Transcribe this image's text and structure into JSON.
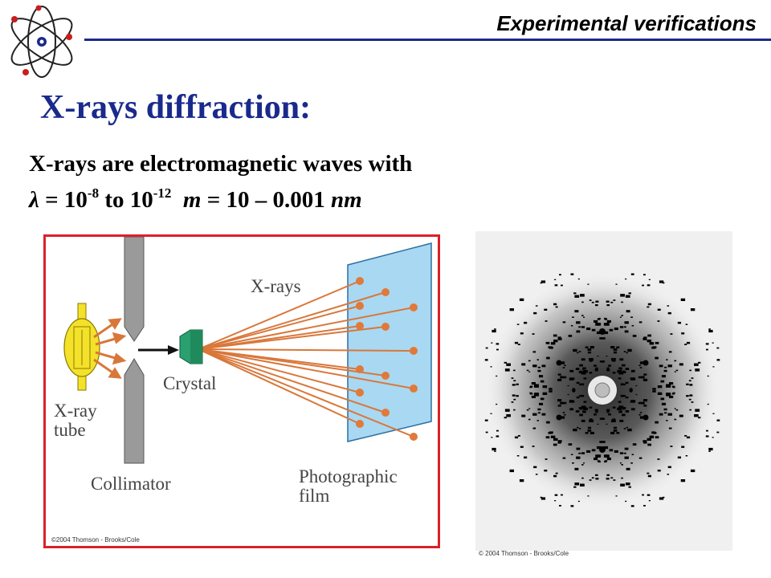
{
  "header": {
    "title": "Experimental verifications"
  },
  "slide": {
    "title": "X-rays diffraction:",
    "line1": "X-rays are electromagnetic  waves with",
    "line2": {
      "lambda": "λ",
      "eq1": " = 10",
      "exp1": "-8",
      "to": " to 10",
      "exp2": "-12",
      "m": "m",
      "rest": " = 10 – 0.001 ",
      "unit": "nm"
    }
  },
  "diagram": {
    "labels": {
      "xrays": "X-rays",
      "crystal": "Crystal",
      "tube": "X-ray\ntube",
      "collimator": "Collimator",
      "film": "Photographic\nfilm"
    },
    "copyright": "©2004 Thomson - Brooks/Cole"
  },
  "photo": {
    "copyright": "© 2004 Thomson - Brooks/Cole"
  },
  "colors": {
    "accent_blue": "#1a2a8c",
    "frame_red": "#d92228",
    "ray_orange": "#d9773a",
    "film_blue": "#a9d8f2",
    "crystal_green": "#2aa070",
    "tube_yellow": "#f4e12a",
    "collimator_gray": "#9a9a9a"
  }
}
